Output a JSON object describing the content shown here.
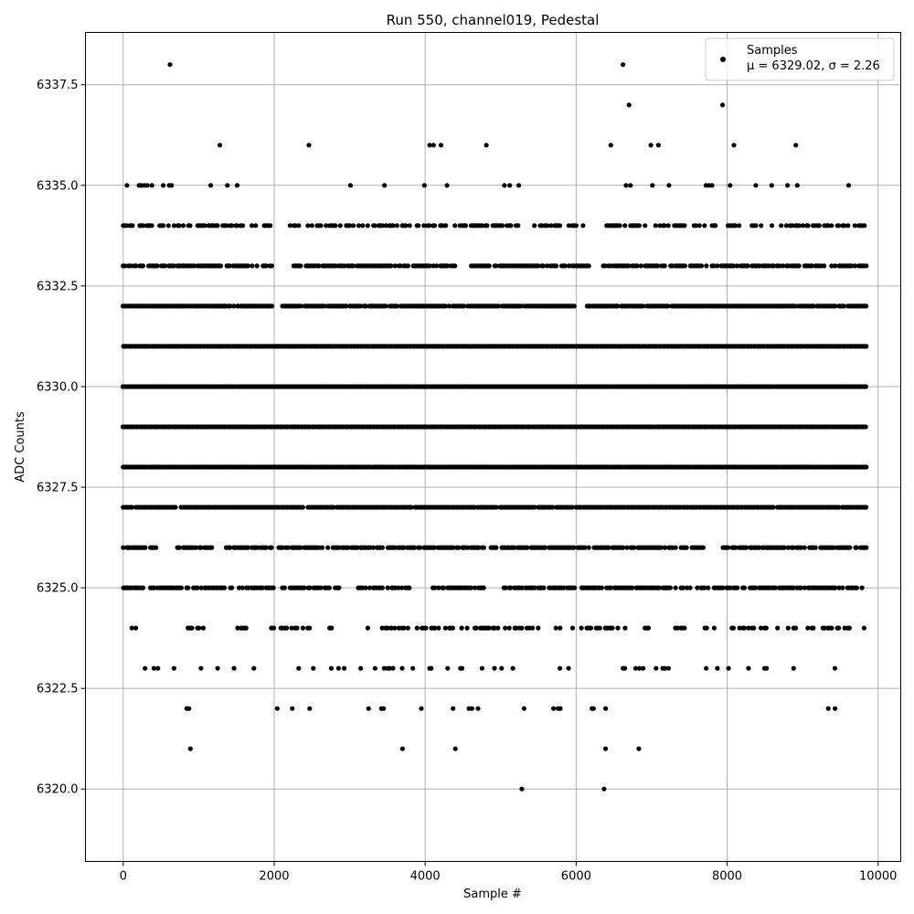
{
  "chart_data": {
    "type": "scatter",
    "title": "Run 550, channel019, Pedestal",
    "xlabel": "Sample #",
    "ylabel": "ADC Counts",
    "xlim": [
      -500,
      10300
    ],
    "ylim": [
      6318.2,
      6338.8
    ],
    "x_ticks": [
      0,
      2000,
      4000,
      6000,
      8000,
      10000
    ],
    "x_tick_labels": [
      "0",
      "2000",
      "4000",
      "6000",
      "8000",
      "10000"
    ],
    "y_ticks": [
      6320.0,
      6322.5,
      6325.0,
      6327.5,
      6330.0,
      6332.5,
      6335.0,
      6337.5
    ],
    "y_tick_labels": [
      "6320.0",
      "6322.5",
      "6325.0",
      "6327.5",
      "6330.0",
      "6332.5",
      "6335.0",
      "6337.5"
    ],
    "grid": true,
    "legend": {
      "location": "top-right",
      "entries": [
        "Samples",
        "μ = 6329.02, σ = 2.26"
      ]
    },
    "marker_color": "#000000",
    "series": [
      {
        "name": "Samples",
        "level_density": [
          {
            "y": 6320,
            "x": [
              5280,
              6370
            ]
          },
          {
            "y": 6321,
            "x": [
              890,
              3700,
              4400,
              6390,
              6830
            ]
          },
          {
            "y": 6322,
            "x": [
              840,
              870,
              2040,
              2240,
              2470,
              3250,
              3420,
              3450,
              3950,
              4370,
              4580,
              4620,
              4700,
              5310,
              5700,
              5760,
              5790,
              6210,
              6230,
              6390,
              9340,
              9430
            ]
          },
          {
            "y": 6337,
            "x": [
              6700,
              7940
            ]
          },
          {
            "y": 6338,
            "x": [
              620,
              6620
            ]
          },
          {
            "y": 6336,
            "x": [
              1280,
              2460,
              4060,
              4110,
              4210,
              4810,
              6460,
              6990,
              7090,
              8090,
              8910
            ]
          },
          {
            "y": 6335,
            "x": [
              50,
              210,
              240,
              280,
              320,
              380,
              530,
              610,
              640,
              1160,
              1380,
              1510,
              3010,
              3460,
              3990,
              4290,
              5050,
              5120,
              5240,
              6660,
              6720,
              7010,
              7230,
              7720,
              7760,
              7800,
              8040,
              8380,
              8590,
              8800,
              8930,
              9610
            ]
          }
        ],
        "levels": [
          {
            "y": 6334,
            "density": 0.55,
            "gaps": [
              [
                1950,
                2200
              ],
              [
                5250,
                5400
              ],
              [
                6100,
                6400
              ],
              [
                8200,
                8300
              ]
            ]
          },
          {
            "y": 6333,
            "density": 0.75,
            "gaps": [
              [
                1970,
                2250
              ],
              [
                4400,
                4600
              ],
              [
                6200,
                6350
              ],
              [
                9300,
                9350
              ]
            ]
          },
          {
            "y": 6332,
            "density": 0.95,
            "gaps": [
              [
                1970,
                2100
              ],
              [
                6000,
                6100
              ]
            ]
          },
          {
            "y": 6331,
            "density": 1.0,
            "gaps": []
          },
          {
            "y": 6330,
            "density": 1.0,
            "gaps": []
          },
          {
            "y": 6329,
            "density": 1.0,
            "gaps": []
          },
          {
            "y": 6328,
            "density": 1.0,
            "gaps": []
          },
          {
            "y": 6327,
            "density": 0.98,
            "gaps": [
              [
                700,
                760
              ]
            ]
          },
          {
            "y": 6326,
            "density": 0.8,
            "gaps": [
              [
                450,
                700
              ],
              [
                1200,
                1350
              ],
              [
                7700,
                7900
              ]
            ]
          },
          {
            "y": 6325,
            "density": 0.75,
            "gaps": [
              [
                2900,
                3100
              ],
              [
                3800,
                4100
              ],
              [
                4800,
                5000
              ]
            ]
          },
          {
            "y": 6324,
            "density": 0.42,
            "gaps": [
              [
                0,
                100
              ],
              [
                200,
                450
              ],
              [
                550,
                800
              ],
              [
                1200,
                1450
              ],
              [
                1800,
                1950
              ],
              [
                2800,
                3200
              ],
              [
                5500,
                5600
              ],
              [
                7000,
                7300
              ],
              [
                7450,
                7600
              ]
            ]
          },
          {
            "y": 6323,
            "density": 0.12,
            "gaps": []
          }
        ]
      }
    ]
  }
}
